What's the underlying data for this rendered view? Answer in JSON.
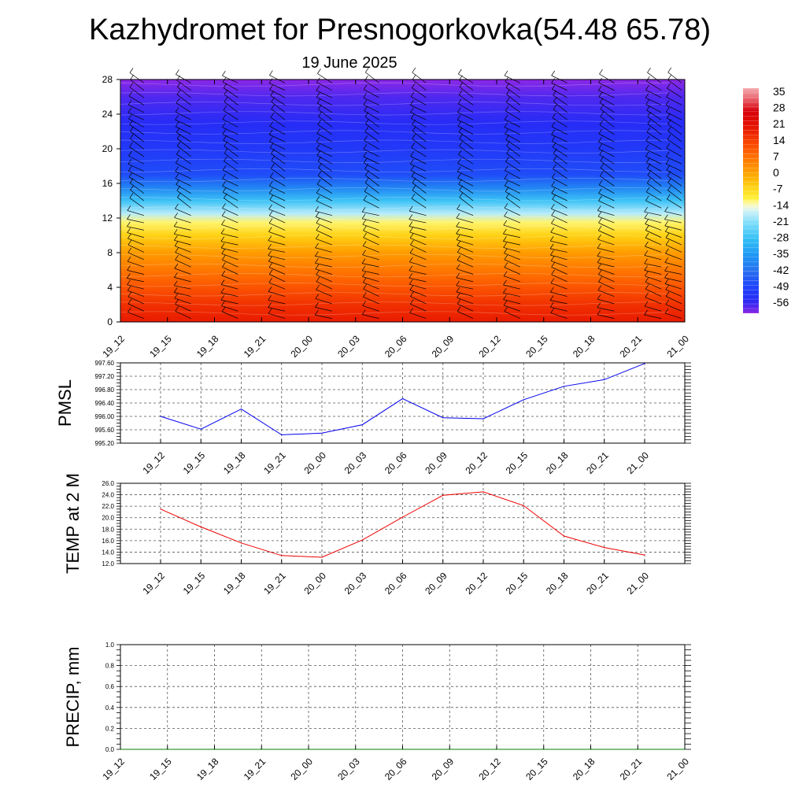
{
  "header": {
    "title": "Kazhydromet for Presnogorkovka(54.48 65.78)",
    "subtitle": "19 June 2025"
  },
  "chart_data": [
    {
      "type": "heatmap",
      "name": "upper-air temperature and wind cross-section",
      "x_ticks": [
        "19_12",
        "19_15",
        "19_18",
        "19_21",
        "20_00",
        "20_03",
        "20_06",
        "20_09",
        "20_12",
        "20_15",
        "20_18",
        "20_21",
        "21_00"
      ],
      "y_ticks": [
        "0",
        "4",
        "8",
        "12",
        "16",
        "20",
        "24",
        "28"
      ],
      "ylim": [
        0,
        28
      ],
      "colorbar_labels": [
        "35",
        "28",
        "21",
        "14",
        "7",
        "0",
        "-7",
        "-14",
        "-21",
        "-28",
        "-35",
        "-42",
        "-49",
        "-56"
      ],
      "colorbar_range": [
        -60,
        38
      ],
      "temperature_profile": [
        {
          "level": 0,
          "value": 20
        },
        {
          "level": 2,
          "value": 17
        },
        {
          "level": 4,
          "value": 12
        },
        {
          "level": 6,
          "value": 7
        },
        {
          "level": 8,
          "value": 2
        },
        {
          "level": 10,
          "value": -5
        },
        {
          "level": 11.5,
          "value": -11
        },
        {
          "level": 12.5,
          "value": -17
        },
        {
          "level": 14,
          "value": -27
        },
        {
          "level": 15.5,
          "value": -38
        },
        {
          "level": 17,
          "value": -47
        },
        {
          "level": 20,
          "value": -51
        },
        {
          "level": 23,
          "value": -54
        },
        {
          "level": 26,
          "value": -57
        },
        {
          "level": 28,
          "value": -60
        }
      ],
      "wind_barbs": true
    },
    {
      "type": "line",
      "ylabel": "PMSL",
      "categories": [
        "19_12",
        "19_15",
        "19_18",
        "19_21",
        "20_00",
        "20_03",
        "20_06",
        "20_09",
        "20_12",
        "20_15",
        "20_18",
        "20_21",
        "21_00"
      ],
      "values": [
        996.0,
        995.62,
        996.22,
        995.45,
        995.5,
        995.75,
        996.53,
        995.96,
        995.93,
        996.5,
        996.9,
        997.1,
        997.58
      ],
      "ylim": [
        995.2,
        997.6
      ],
      "y_ticks": [
        "995.20",
        "995.60",
        "996.00",
        "996.40",
        "996.80",
        "997.20",
        "997.60"
      ],
      "color": "#0000ee",
      "grid": true
    },
    {
      "type": "line",
      "ylabel": "TEMP at 2 M",
      "categories": [
        "19_12",
        "19_15",
        "19_18",
        "19_21",
        "20_00",
        "20_03",
        "20_06",
        "20_09",
        "20_12",
        "20_15",
        "20_18",
        "20_21",
        "21_00"
      ],
      "values": [
        21.5,
        18.4,
        15.6,
        13.4,
        13.1,
        16.1,
        20.1,
        23.9,
        24.5,
        22.1,
        16.8,
        14.8,
        13.5
      ],
      "ylim": [
        12.0,
        26.0
      ],
      "y_ticks": [
        "12.0",
        "14.0",
        "16.0",
        "18.0",
        "20.0",
        "22.0",
        "24.0",
        "26.0"
      ],
      "color": "#ee0000",
      "grid": true
    },
    {
      "type": "line",
      "ylabel": "PRECIP, mm",
      "categories": [
        "19_12",
        "19_15",
        "19_18",
        "19_21",
        "20_00",
        "20_03",
        "20_06",
        "20_09",
        "20_12",
        "20_15",
        "20_18",
        "20_21",
        "21_00"
      ],
      "values": [
        0,
        0,
        0,
        0,
        0,
        0,
        0,
        0,
        0,
        0,
        0,
        0,
        0
      ],
      "ylim": [
        0.0,
        1.0
      ],
      "y_ticks": [
        "0.0",
        "0.2",
        "0.4",
        "0.6",
        "0.8",
        "1.0"
      ],
      "color": "#008000",
      "grid": true
    }
  ]
}
